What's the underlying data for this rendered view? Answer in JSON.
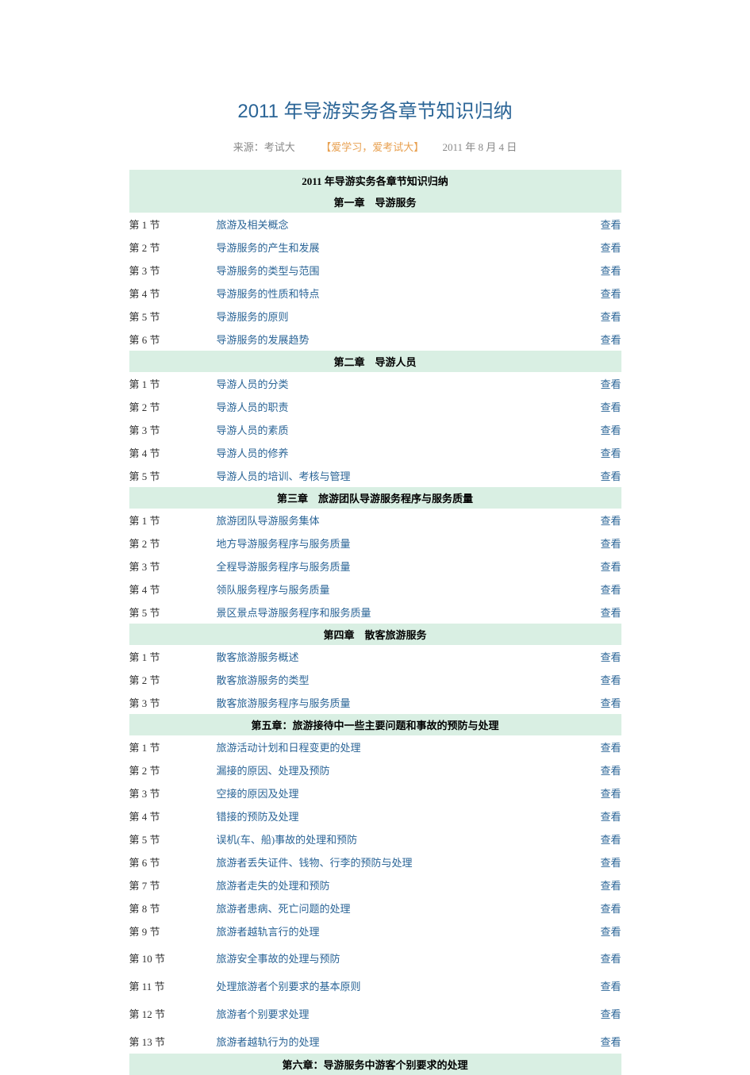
{
  "page_title": "2011 年导游实务各章节知识归纳",
  "meta": {
    "source_prefix": "来源：考试大",
    "love_text": "【爱学习，爱考试大】",
    "date": "2011 年 8 月 4 日"
  },
  "table_main_header": "2011 年导游实务各章节知识归纳",
  "view_label": "查看",
  "link_color": "#2a6496",
  "header_bg": "#d9efe3",
  "text_color": "#333333",
  "meta_color": "#888888",
  "love_color": "#e8a050",
  "chapters": [
    {
      "header": "第一章　导游服务",
      "sections": [
        {
          "num": "第 1 节",
          "title": "旅游及相关概念"
        },
        {
          "num": "第 2 节",
          "title": "导游服务的产生和发展"
        },
        {
          "num": "第 3 节",
          "title": "导游服务的类型与范围"
        },
        {
          "num": "第 4 节",
          "title": "导游服务的性质和特点"
        },
        {
          "num": "第 5 节",
          "title": "导游服务的原则"
        },
        {
          "num": "第 6 节",
          "title": "导游服务的发展趋势"
        }
      ]
    },
    {
      "header": "第二章　导游人员",
      "sections": [
        {
          "num": "第 1 节",
          "title": "导游人员的分类"
        },
        {
          "num": "第 2 节",
          "title": "导游人员的职责"
        },
        {
          "num": "第 3 节",
          "title": "导游人员的素质"
        },
        {
          "num": "第 4 节",
          "title": "导游人员的修养"
        },
        {
          "num": "第 5 节",
          "title": "导游人员的培训、考核与管理"
        }
      ]
    },
    {
      "header": "第三章　旅游团队导游服务程序与服务质量",
      "sections": [
        {
          "num": "第 1 节",
          "title": "旅游团队导游服务集体"
        },
        {
          "num": "第 2 节",
          "title": "地方导游服务程序与服务质量"
        },
        {
          "num": "第 3 节",
          "title": "全程导游服务程序与服务质量"
        },
        {
          "num": "第 4 节",
          "title": "领队服务程序与服务质量"
        },
        {
          "num": "第 5 节",
          "title": "景区景点导游服务程序和服务质量"
        }
      ]
    },
    {
      "header": "第四章　散客旅游服务",
      "sections": [
        {
          "num": "第 1 节",
          "title": "散客旅游服务概述"
        },
        {
          "num": "第 2 节",
          "title": "散客旅游服务的类型"
        },
        {
          "num": "第 3 节",
          "title": "散客旅游服务程序与服务质量"
        }
      ]
    },
    {
      "header": "第五章：旅游接待中一些主要问题和事故的预防与处理",
      "sections": [
        {
          "num": "第 1 节",
          "title": "旅游活动计划和日程变更的处理"
        },
        {
          "num": "第 2 节",
          "title": "漏接的原因、处理及预防"
        },
        {
          "num": "第 3 节",
          "title": "空接的原因及处理"
        },
        {
          "num": "第 4 节",
          "title": "错接的预防及处理"
        },
        {
          "num": "第 5 节",
          "title": "误机(车、船)事故的处理和预防"
        },
        {
          "num": "第 6 节",
          "title": "旅游者丢失证件、钱物、行李的预防与处理"
        },
        {
          "num": "第 7 节",
          "title": "旅游者走失的处理和预防"
        },
        {
          "num": "第 8 节",
          "title": "旅游者患病、死亡问题的处理"
        },
        {
          "num": "第 9 节",
          "title": "旅游者越轨言行的处理"
        },
        {
          "num": "第 10 节",
          "title": "旅游安全事故的处理与预防",
          "tall": true
        },
        {
          "num": "第 11 节",
          "title": "处理旅游者个别要求的基本原则",
          "tall": true
        },
        {
          "num": "第 12 节",
          "title": "旅游者个别要求处理",
          "tall": true
        },
        {
          "num": "第 13 节",
          "title": "旅游者越轨行为的处理",
          "tall": true
        }
      ]
    },
    {
      "header": "第六章：导游服务中游客个别要求的处理",
      "sections": []
    }
  ]
}
